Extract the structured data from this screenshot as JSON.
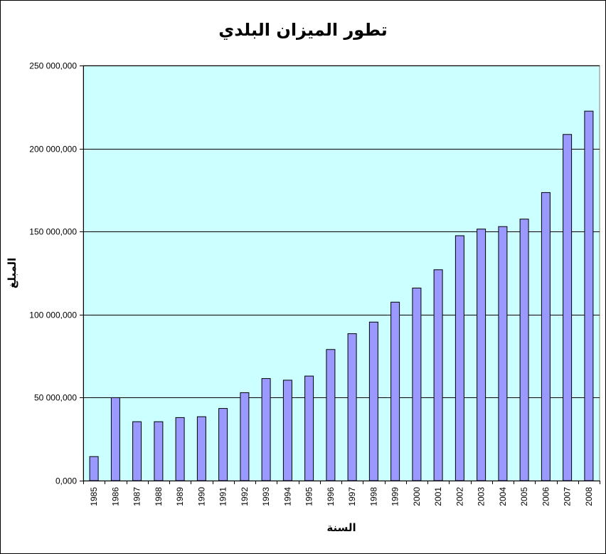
{
  "chart_data": {
    "type": "bar",
    "title": "تطور الميزان البلدي",
    "xlabel": "السنة",
    "ylabel": "المبلغ",
    "categories": [
      "1985",
      "1986",
      "1987",
      "1988",
      "1989",
      "1990",
      "1991",
      "1992",
      "1993",
      "1994",
      "1995",
      "1996",
      "1997",
      "1998",
      "1999",
      "2000",
      "2001",
      "2002",
      "2003",
      "2004",
      "2005",
      "2006",
      "2007",
      "2008"
    ],
    "values": [
      14500000,
      50000000,
      35500000,
      35500000,
      38000000,
      38500000,
      43500000,
      53000000,
      61500000,
      60500000,
      63000000,
      79000000,
      88500000,
      95500000,
      107500000,
      116000000,
      127000000,
      147500000,
      151500000,
      153000000,
      157500000,
      173500000,
      208500000,
      222500000
    ],
    "ylim": [
      0,
      250000000
    ],
    "yticks": [
      0,
      50000000,
      100000000,
      150000000,
      200000000,
      250000000
    ],
    "ytick_labels": [
      "0,000",
      "50 000,000",
      "100 000,000",
      "150 000,000",
      "200 000,000",
      "250 000,000"
    ],
    "grid": true,
    "legend": "none",
    "colors": {
      "plot_background": "#CCFFFF",
      "bar_fill": "#9999FF",
      "bar_stroke": "#000000",
      "gridline": "#000000"
    }
  }
}
